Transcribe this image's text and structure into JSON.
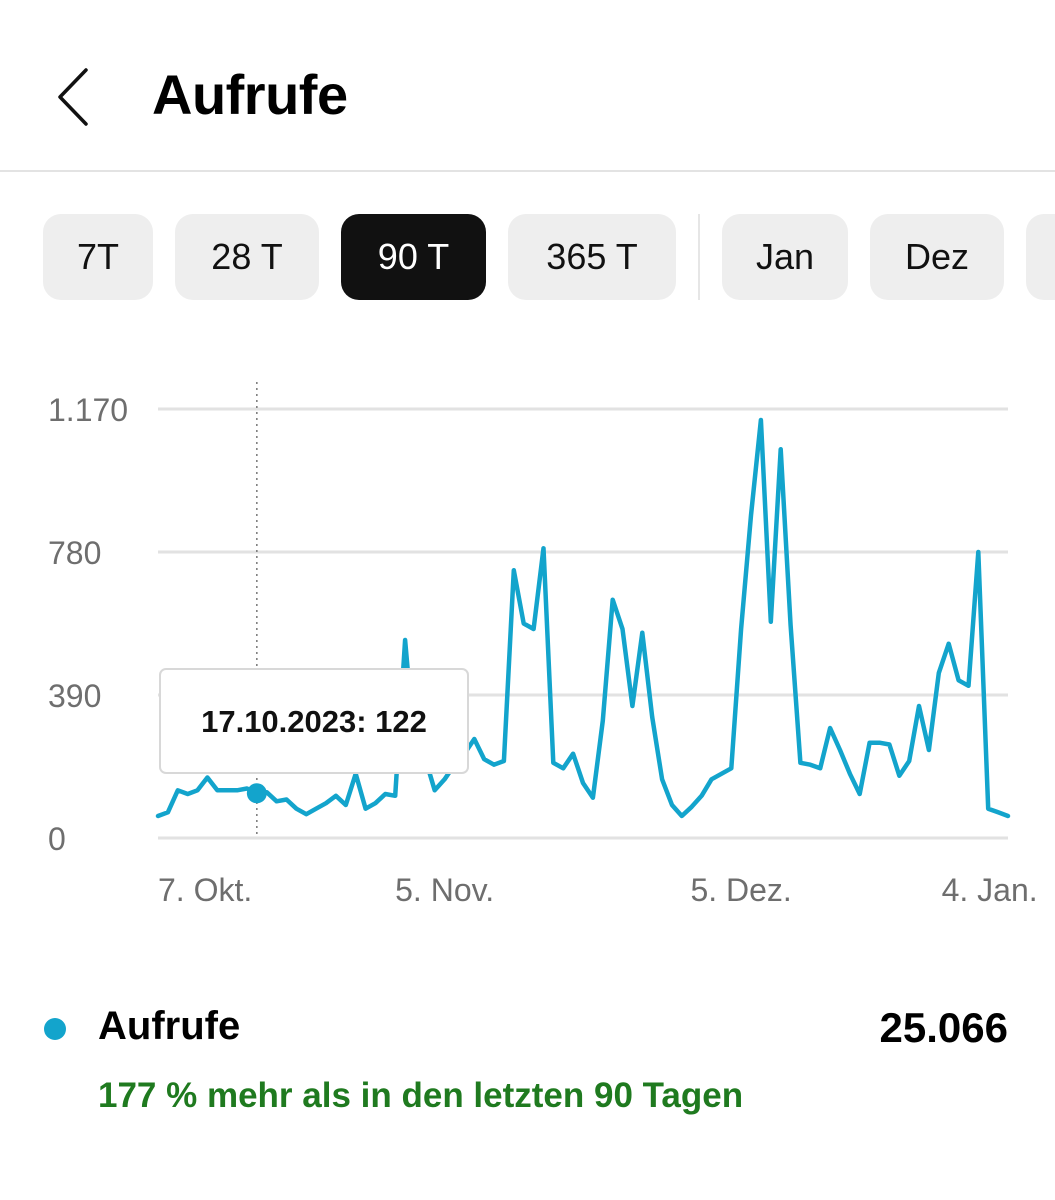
{
  "header": {
    "back_icon": "chevron-left-icon",
    "title": "Aufrufe"
  },
  "tabs": [
    {
      "label": "7T",
      "active": false
    },
    {
      "label": "28 T",
      "active": false
    },
    {
      "label": "90 T",
      "active": true
    },
    {
      "label": "365 T",
      "active": false
    },
    {
      "label": "Jan",
      "active": false
    },
    {
      "label": "Dez",
      "active": false
    },
    {
      "label": "",
      "active": false
    }
  ],
  "colors": {
    "series": "#13a4cc",
    "positive": "#1f7a1f",
    "active_tab": "#111111"
  },
  "chart_data": {
    "type": "line",
    "title": "",
    "xlabel": "",
    "ylabel": "",
    "ylim": [
      0,
      1170
    ],
    "yticks": [
      0,
      390,
      780,
      1170
    ],
    "ytick_labels": [
      "0",
      "390",
      "780",
      "1.170"
    ],
    "xtick_labels": [
      {
        "index": 0,
        "label": "7. Okt."
      },
      {
        "index": 29,
        "label": "5. Nov."
      },
      {
        "index": 59,
        "label": "5. Dez."
      },
      {
        "index": 89,
        "label": "4. Jan."
      }
    ],
    "grid": true,
    "series": [
      {
        "name": "Aufrufe",
        "values": [
          60,
          70,
          130,
          120,
          130,
          165,
          130,
          130,
          130,
          135,
          122,
          125,
          100,
          105,
          80,
          65,
          80,
          95,
          115,
          90,
          175,
          80,
          95,
          120,
          115,
          540,
          230,
          220,
          130,
          160,
          200,
          230,
          270,
          215,
          200,
          210,
          730,
          585,
          570,
          790,
          205,
          190,
          230,
          150,
          110,
          320,
          650,
          570,
          360,
          560,
          330,
          160,
          90,
          60,
          85,
          115,
          160,
          175,
          190,
          570,
          880,
          1140,
          590,
          1060,
          580,
          205,
          200,
          190,
          300,
          240,
          175,
          120,
          260,
          260,
          255,
          170,
          210,
          360,
          240,
          450,
          530,
          430,
          415,
          780,
          80,
          70,
          60
        ],
        "color": "#13a4cc"
      }
    ],
    "tooltip": {
      "index": 10,
      "text": "17.10.2023: 122"
    }
  },
  "legend": {
    "label": "Aufrufe",
    "total": "25.066",
    "comparison": "177 % mehr als in den letzten 90 Tagen"
  }
}
